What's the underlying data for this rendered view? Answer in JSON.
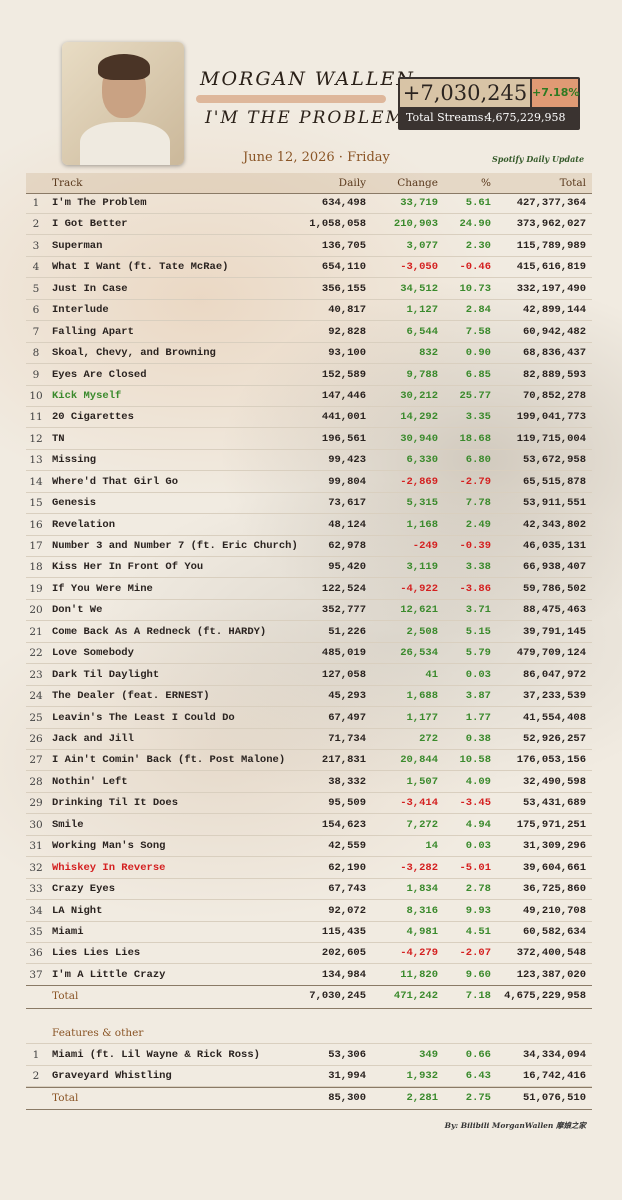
{
  "header": {
    "artist": "MORGAN WALLEN",
    "album": "I'M THE PROBLEM",
    "daily_change": "+7,030,245",
    "daily_pct": "+7.18%",
    "total_streams_label": "Total Streams:",
    "total_streams": "4,675,229,958",
    "date": "June 12, 2026 · Friday",
    "source": "Spotify Daily Update"
  },
  "table": {
    "columns": [
      "Track",
      "Daily",
      "Change",
      "%",
      "Total"
    ],
    "rows": [
      [
        "1",
        "I'm The Problem",
        "634,498",
        "33,719",
        "5.61",
        "427,377,364"
      ],
      [
        "2",
        "I Got Better",
        "1,058,058",
        "210,903",
        "24.90",
        "373,962,027"
      ],
      [
        "3",
        "Superman",
        "136,705",
        "3,077",
        "2.30",
        "115,789,989"
      ],
      [
        "4",
        "What I Want (ft. Tate McRae)",
        "654,110",
        "-3,050",
        "-0.46",
        "415,616,819"
      ],
      [
        "5",
        "Just In Case",
        "356,155",
        "34,512",
        "10.73",
        "332,197,490"
      ],
      [
        "6",
        "Interlude",
        "40,817",
        "1,127",
        "2.84",
        "42,899,144"
      ],
      [
        "7",
        "Falling Apart",
        "92,828",
        "6,544",
        "7.58",
        "60,942,482"
      ],
      [
        "8",
        "Skoal, Chevy, and Browning",
        "93,100",
        "832",
        "0.90",
        "68,836,437"
      ],
      [
        "9",
        "Eyes Are Closed",
        "152,589",
        "9,788",
        "6.85",
        "82,889,593"
      ],
      [
        "10",
        "Kick Myself",
        "147,446",
        "30,212",
        "25.77",
        "70,852,278",
        "#3a8a2c"
      ],
      [
        "11",
        "20 Cigarettes",
        "441,001",
        "14,292",
        "3.35",
        "199,041,773"
      ],
      [
        "12",
        "TN",
        "196,561",
        "30,940",
        "18.68",
        "119,715,004"
      ],
      [
        "13",
        "Missing",
        "99,423",
        "6,330",
        "6.80",
        "53,672,958"
      ],
      [
        "14",
        "Where'd That Girl Go",
        "99,804",
        "-2,869",
        "-2.79",
        "65,515,878"
      ],
      [
        "15",
        "Genesis",
        "73,617",
        "5,315",
        "7.78",
        "53,911,551"
      ],
      [
        "16",
        "Revelation",
        "48,124",
        "1,168",
        "2.49",
        "42,343,802"
      ],
      [
        "17",
        "Number 3 and Number 7 (ft. Eric Church)",
        "62,978",
        "-249",
        "-0.39",
        "46,035,131"
      ],
      [
        "18",
        "Kiss Her In Front Of You",
        "95,420",
        "3,119",
        "3.38",
        "66,938,407"
      ],
      [
        "19",
        "If You Were Mine",
        "122,524",
        "-4,922",
        "-3.86",
        "59,786,502"
      ],
      [
        "20",
        "Don't We",
        "352,777",
        "12,621",
        "3.71",
        "88,475,463"
      ],
      [
        "21",
        "Come Back As A Redneck (ft. HARDY)",
        "51,226",
        "2,508",
        "5.15",
        "39,791,145"
      ],
      [
        "22",
        "Love Somebody",
        "485,019",
        "26,534",
        "5.79",
        "479,709,124"
      ],
      [
        "23",
        "Dark Til Daylight",
        "127,058",
        "41",
        "0.03",
        "86,047,972"
      ],
      [
        "24",
        "The Dealer (feat. ERNEST)",
        "45,293",
        "1,688",
        "3.87",
        "37,233,539"
      ],
      [
        "25",
        "Leavin's The Least I Could Do",
        "67,497",
        "1,177",
        "1.77",
        "41,554,408"
      ],
      [
        "26",
        "Jack and Jill",
        "71,734",
        "272",
        "0.38",
        "52,926,257"
      ],
      [
        "27",
        "I Ain't Comin' Back (ft. Post Malone)",
        "217,831",
        "20,844",
        "10.58",
        "176,053,156"
      ],
      [
        "28",
        "Nothin' Left",
        "38,332",
        "1,507",
        "4.09",
        "32,490,598"
      ],
      [
        "29",
        "Drinking Til It Does",
        "95,509",
        "-3,414",
        "-3.45",
        "53,431,689"
      ],
      [
        "30",
        "Smile",
        "154,623",
        "7,272",
        "4.94",
        "175,971,251"
      ],
      [
        "31",
        "Working Man's Song",
        "42,559",
        "14",
        "0.03",
        "31,309,296"
      ],
      [
        "32",
        "Whiskey In Reverse",
        "62,190",
        "-3,282",
        "-5.01",
        "39,604,661",
        "#d42020"
      ],
      [
        "33",
        "Crazy Eyes",
        "67,743",
        "1,834",
        "2.78",
        "36,725,860"
      ],
      [
        "34",
        "LA Night",
        "92,072",
        "8,316",
        "9.93",
        "49,210,708"
      ],
      [
        "35",
        "Miami",
        "115,435",
        "4,981",
        "4.51",
        "60,582,634"
      ],
      [
        "36",
        "Lies Lies Lies",
        "202,605",
        "-4,279",
        "-2.07",
        "372,400,548"
      ],
      [
        "37",
        "I'm A Little Crazy",
        "134,984",
        "11,820",
        "9.60",
        "123,387,020"
      ]
    ],
    "total": [
      "Total",
      "7,030,245",
      "471,242",
      "7.18",
      "4,675,229,958"
    ]
  },
  "features": {
    "title": "Features & other",
    "rows": [
      [
        "1",
        "Miami (ft. Lil Wayne & Rick Ross)",
        "53,306",
        "349",
        "0.66",
        "34,334,094"
      ],
      [
        "2",
        "Graveyard Whistling",
        "31,994",
        "1,932",
        "6.43",
        "16,742,416"
      ]
    ],
    "total": [
      "Total",
      "85,300",
      "2,281",
      "2.75",
      "51,076,510"
    ]
  },
  "footer": {
    "credit": "By: Bilibili MorganWallen 摩娘之家"
  }
}
